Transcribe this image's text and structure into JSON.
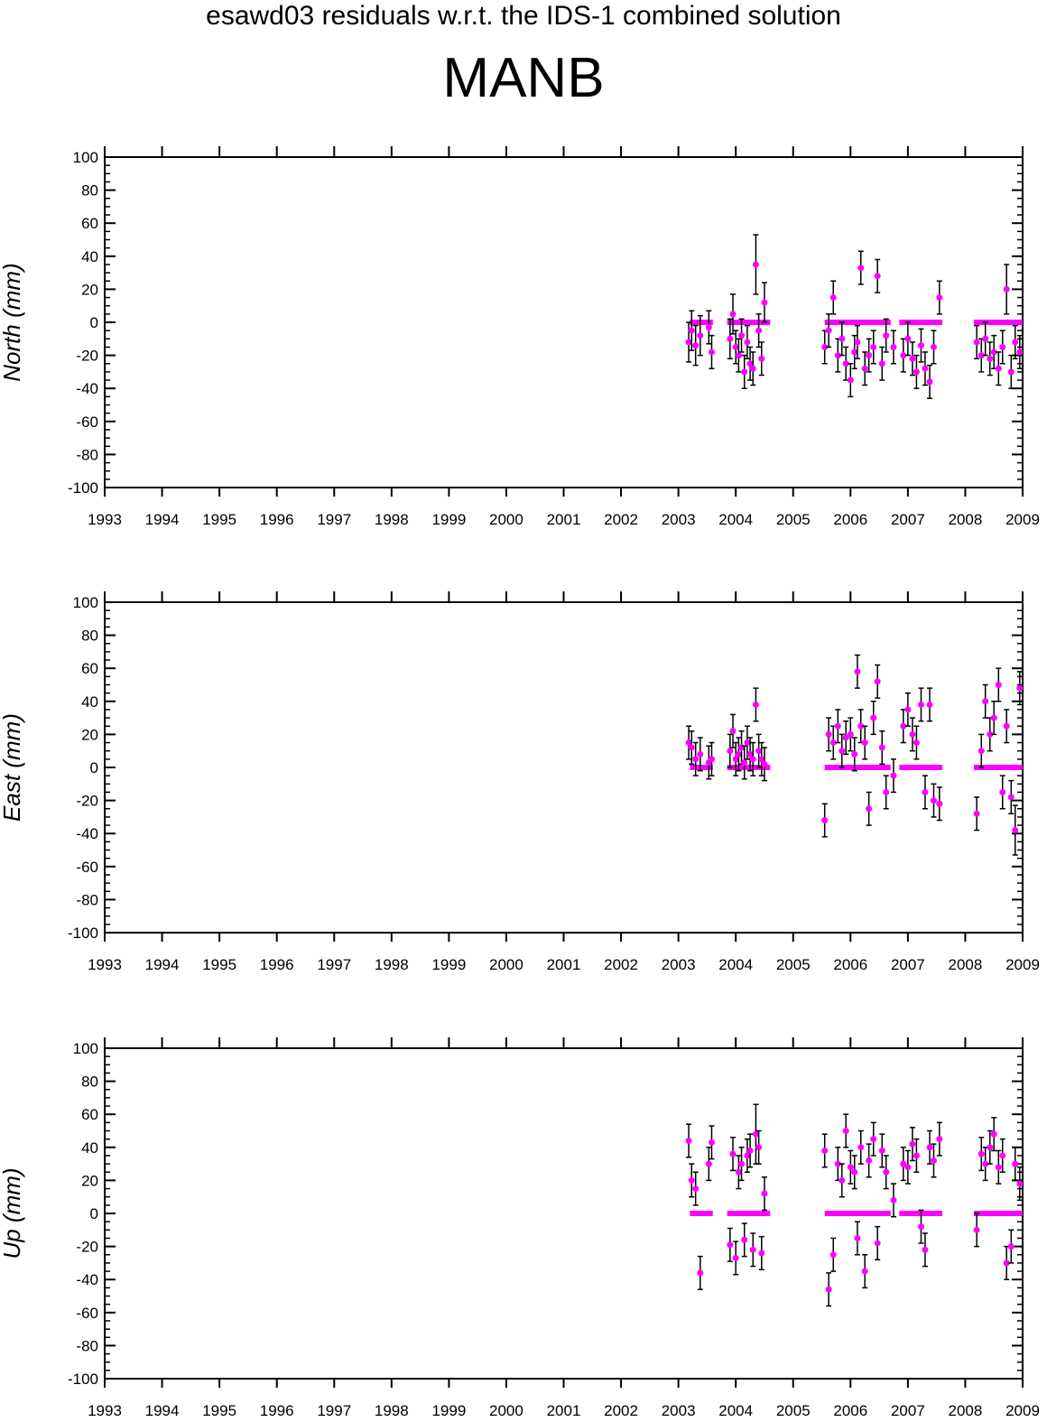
{
  "title": "esawd03 residuals w.r.t. the IDS-1 combined solution",
  "station": "MANB",
  "colors": {
    "point": "#ff00ff",
    "errorbar": "#000000",
    "axis": "#000000"
  },
  "chart_data": [
    {
      "type": "scatter",
      "ylabel": "North (mm)",
      "xlim": [
        1993,
        2009
      ],
      "ylim": [
        -100,
        100
      ],
      "x_ticks": [
        "1993",
        "1994",
        "1995",
        "1996",
        "1997",
        "1998",
        "1999",
        "2000",
        "2001",
        "2002",
        "2003",
        "2004",
        "2005",
        "2006",
        "2007",
        "2008",
        "2009"
      ],
      "y_ticks": [
        "100",
        "80",
        "60",
        "40",
        "20",
        "0",
        "-20",
        "-40",
        "-60",
        "-80",
        "-100"
      ],
      "zero_segments": [
        [
          2003.2,
          2003.6
        ],
        [
          2003.85,
          2004.6
        ],
        [
          2005.55,
          2006.7
        ],
        [
          2006.85,
          2007.6
        ],
        [
          2008.15,
          2009.0
        ]
      ],
      "series": [
        {
          "x": [
            2003.18,
            2003.23,
            2003.3,
            2003.38,
            2003.53,
            2003.58,
            2003.9,
            2003.95,
            2004.0,
            2004.05,
            2004.1,
            2004.15,
            2004.2,
            2004.25,
            2004.3,
            2004.35,
            2004.4,
            2004.45,
            2004.5,
            2005.55,
            2005.62,
            2005.7,
            2005.78,
            2005.85,
            2005.92,
            2006.0,
            2006.07,
            2006.12,
            2006.18,
            2006.25,
            2006.32,
            2006.4,
            2006.47,
            2006.55,
            2006.62,
            2006.75,
            2006.92,
            2007.0,
            2007.08,
            2007.15,
            2007.23,
            2007.3,
            2007.38,
            2007.45,
            2007.55,
            2008.2,
            2008.28,
            2008.35,
            2008.43,
            2008.5,
            2008.58,
            2008.65,
            2008.72,
            2008.8,
            2008.87,
            2008.95
          ],
          "y": [
            -12,
            -5,
            -14,
            -8,
            -3,
            -18,
            -10,
            5,
            -15,
            -20,
            -8,
            -30,
            -12,
            -25,
            -28,
            35,
            -5,
            -22,
            12,
            -15,
            -5,
            15,
            -20,
            -10,
            -25,
            -35,
            -18,
            -12,
            33,
            -28,
            -20,
            -15,
            28,
            -25,
            -8,
            -15,
            -20,
            -10,
            -22,
            -30,
            -14,
            -28,
            -36,
            -15,
            15,
            -12,
            -20,
            -10,
            -22,
            -18,
            -28,
            -15,
            20,
            -30,
            -12,
            -18
          ],
          "err": [
            12,
            12,
            12,
            12,
            10,
            10,
            12,
            12,
            10,
            10,
            10,
            10,
            10,
            10,
            10,
            18,
            10,
            10,
            12,
            10,
            10,
            10,
            10,
            10,
            10,
            10,
            10,
            10,
            10,
            10,
            10,
            10,
            10,
            10,
            10,
            10,
            10,
            10,
            10,
            10,
            10,
            10,
            10,
            10,
            10,
            10,
            10,
            10,
            10,
            10,
            10,
            10,
            15,
            10,
            10,
            10
          ]
        }
      ]
    },
    {
      "type": "scatter",
      "ylabel": "East (mm)",
      "xlim": [
        1993,
        2009
      ],
      "ylim": [
        -100,
        100
      ],
      "x_ticks": [
        "1993",
        "1994",
        "1995",
        "1996",
        "1997",
        "1998",
        "1999",
        "2000",
        "2001",
        "2002",
        "2003",
        "2004",
        "2005",
        "2006",
        "2007",
        "2008",
        "2009"
      ],
      "y_ticks": [
        "100",
        "80",
        "60",
        "40",
        "20",
        "0",
        "-20",
        "-40",
        "-60",
        "-80",
        "-100"
      ],
      "zero_segments": [
        [
          2003.2,
          2003.6
        ],
        [
          2003.85,
          2004.6
        ],
        [
          2005.55,
          2006.7
        ],
        [
          2006.85,
          2007.6
        ],
        [
          2008.15,
          2009.0
        ]
      ],
      "series": [
        {
          "x": [
            2003.18,
            2003.23,
            2003.3,
            2003.38,
            2003.53,
            2003.58,
            2003.9,
            2003.95,
            2004.0,
            2004.05,
            2004.1,
            2004.15,
            2004.2,
            2004.25,
            2004.3,
            2004.35,
            2004.4,
            2004.45,
            2004.5,
            2005.55,
            2005.62,
            2005.7,
            2005.78,
            2005.85,
            2005.92,
            2006.0,
            2006.07,
            2006.12,
            2006.18,
            2006.25,
            2006.32,
            2006.4,
            2006.47,
            2006.55,
            2006.62,
            2006.75,
            2006.92,
            2007.0,
            2007.08,
            2007.15,
            2007.23,
            2007.3,
            2007.38,
            2007.45,
            2007.55,
            2008.2,
            2008.28,
            2008.35,
            2008.43,
            2008.5,
            2008.58,
            2008.65,
            2008.72,
            2008.8,
            2008.87,
            2008.95
          ],
          "y": [
            15,
            12,
            5,
            8,
            3,
            5,
            10,
            22,
            5,
            8,
            12,
            3,
            15,
            8,
            5,
            38,
            10,
            5,
            2,
            -32,
            20,
            15,
            25,
            10,
            18,
            20,
            8,
            58,
            25,
            15,
            -25,
            30,
            52,
            12,
            -15,
            -5,
            25,
            35,
            20,
            15,
            38,
            -15,
            38,
            -20,
            -22,
            -28,
            10,
            40,
            20,
            30,
            50,
            -15,
            25,
            -18,
            -38,
            48
          ],
          "err": [
            10,
            10,
            10,
            10,
            10,
            10,
            10,
            10,
            10,
            10,
            10,
            10,
            10,
            10,
            10,
            10,
            10,
            10,
            10,
            10,
            10,
            10,
            10,
            10,
            10,
            10,
            10,
            10,
            10,
            10,
            10,
            10,
            10,
            10,
            10,
            10,
            10,
            10,
            10,
            10,
            10,
            10,
            10,
            10,
            10,
            10,
            10,
            10,
            10,
            10,
            10,
            10,
            10,
            10,
            15,
            10
          ]
        }
      ]
    },
    {
      "type": "scatter",
      "ylabel": "Up (mm)",
      "xlim": [
        1993,
        2009
      ],
      "ylim": [
        -100,
        100
      ],
      "x_ticks": [
        "1993",
        "1994",
        "1995",
        "1996",
        "1997",
        "1998",
        "1999",
        "2000",
        "2001",
        "2002",
        "2003",
        "2004",
        "2005",
        "2006",
        "2007",
        "2008",
        "2009"
      ],
      "y_ticks": [
        "100",
        "80",
        "60",
        "40",
        "20",
        "0",
        "-20",
        "-40",
        "-60",
        "-80",
        "-100"
      ],
      "zero_segments": [
        [
          2003.2,
          2003.6
        ],
        [
          2003.85,
          2004.6
        ],
        [
          2005.55,
          2006.7
        ],
        [
          2006.85,
          2007.6
        ],
        [
          2008.15,
          2009.0
        ]
      ],
      "series": [
        {
          "x": [
            2003.18,
            2003.23,
            2003.3,
            2003.38,
            2003.53,
            2003.58,
            2003.9,
            2003.95,
            2004.0,
            2004.05,
            2004.1,
            2004.15,
            2004.2,
            2004.25,
            2004.3,
            2004.35,
            2004.4,
            2004.45,
            2004.5,
            2005.55,
            2005.62,
            2005.7,
            2005.78,
            2005.85,
            2005.92,
            2006.0,
            2006.07,
            2006.12,
            2006.18,
            2006.25,
            2006.32,
            2006.4,
            2006.47,
            2006.55,
            2006.62,
            2006.75,
            2006.92,
            2007.0,
            2007.08,
            2007.15,
            2007.23,
            2007.3,
            2007.38,
            2007.45,
            2007.55,
            2008.2,
            2008.28,
            2008.35,
            2008.43,
            2008.5,
            2008.58,
            2008.65,
            2008.72,
            2008.8,
            2008.87,
            2008.95
          ],
          "y": [
            44,
            20,
            15,
            -36,
            30,
            43,
            -19,
            36,
            -27,
            25,
            30,
            -16,
            35,
            38,
            -22,
            48,
            40,
            -24,
            12,
            38,
            -46,
            -25,
            30,
            20,
            50,
            28,
            25,
            -15,
            40,
            -35,
            32,
            45,
            -18,
            38,
            25,
            8,
            30,
            28,
            42,
            35,
            -8,
            -22,
            40,
            32,
            45,
            -10,
            36,
            30,
            40,
            48,
            28,
            35,
            -30,
            -20,
            30,
            18
          ],
          "err": [
            10,
            10,
            10,
            10,
            10,
            10,
            10,
            10,
            10,
            10,
            10,
            10,
            10,
            10,
            10,
            18,
            10,
            10,
            10,
            10,
            10,
            10,
            10,
            10,
            10,
            10,
            10,
            10,
            10,
            10,
            10,
            10,
            10,
            10,
            10,
            10,
            10,
            10,
            10,
            10,
            10,
            10,
            10,
            10,
            10,
            10,
            10,
            10,
            10,
            10,
            10,
            10,
            10,
            10,
            10,
            10
          ]
        }
      ]
    }
  ]
}
